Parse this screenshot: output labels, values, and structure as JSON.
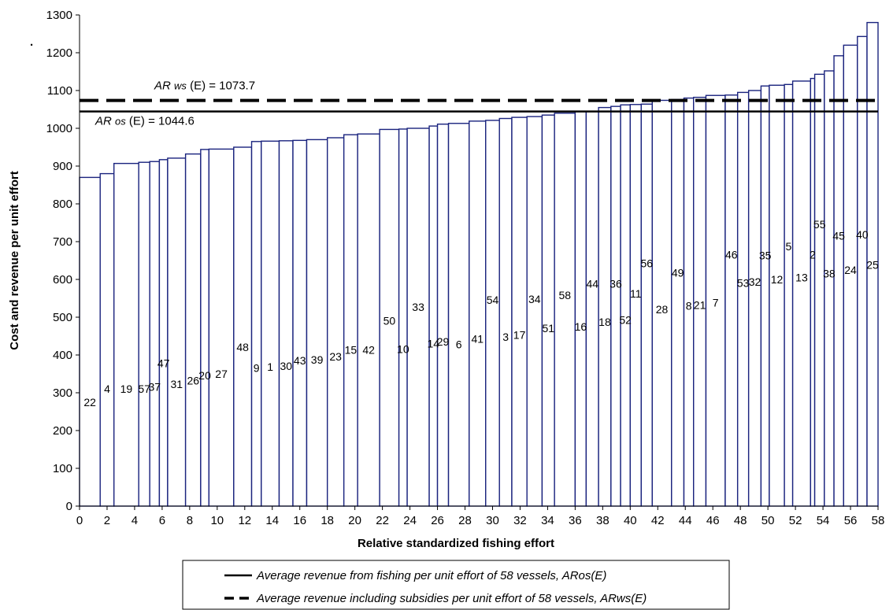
{
  "chart_data": {
    "type": "bar",
    "title": "",
    "xlabel": "Relative standardized fishing effort",
    "ylabel": "Cost and revenue per unit effort",
    "xlim": [
      0,
      58
    ],
    "ylim": [
      0,
      1300
    ],
    "x_ticks": [
      0,
      2,
      4,
      6,
      8,
      10,
      12,
      14,
      16,
      18,
      20,
      22,
      24,
      26,
      28,
      30,
      32,
      34,
      36,
      38,
      40,
      42,
      44,
      46,
      48,
      50,
      52,
      54,
      56,
      58
    ],
    "y_ticks": [
      0,
      100,
      200,
      300,
      400,
      500,
      600,
      700,
      800,
      900,
      1000,
      1100,
      1200,
      1300
    ],
    "bar_color": "#1a237e",
    "corner_mark": ".",
    "bars": [
      {
        "vessel": "22",
        "x0": 0,
        "x1": 1.5,
        "height": 870,
        "label_value": 265
      },
      {
        "vessel": "4",
        "x0": 1.5,
        "x1": 2.5,
        "height": 880,
        "label_value": 300
      },
      {
        "vessel": "19",
        "x0": 2.5,
        "x1": 4.3,
        "height": 907,
        "label_value": 300
      },
      {
        "vessel": "57",
        "x0": 4.3,
        "x1": 5.1,
        "height": 910,
        "label_value": 300
      },
      {
        "vessel": "37",
        "x0": 5.1,
        "x1": 5.8,
        "height": 912,
        "label_value": 305
      },
      {
        "vessel": "47",
        "x0": 5.8,
        "x1": 6.4,
        "height": 917,
        "label_value": 368
      },
      {
        "vessel": "31",
        "x0": 6.4,
        "x1": 7.7,
        "height": 921,
        "label_value": 312
      },
      {
        "vessel": "26",
        "x0": 7.7,
        "x1": 8.8,
        "height": 932,
        "label_value": 322
      },
      {
        "vessel": "20",
        "x0": 8.8,
        "x1": 9.4,
        "height": 944,
        "label_value": 335
      },
      {
        "vessel": "27",
        "x0": 9.4,
        "x1": 11.2,
        "height": 945,
        "label_value": 340
      },
      {
        "vessel": "48",
        "x0": 11.2,
        "x1": 12.5,
        "height": 950,
        "label_value": 410
      },
      {
        "vessel": "9",
        "x0": 12.5,
        "x1": 13.2,
        "height": 965,
        "label_value": 355
      },
      {
        "vessel": "1",
        "x0": 13.2,
        "x1": 14.5,
        "height": 966,
        "label_value": 358
      },
      {
        "vessel": "30",
        "x0": 14.5,
        "x1": 15.5,
        "height": 967,
        "label_value": 360
      },
      {
        "vessel": "43",
        "x0": 15.5,
        "x1": 16.5,
        "height": 968,
        "label_value": 375
      },
      {
        "vessel": "39",
        "x0": 16.5,
        "x1": 18,
        "height": 970,
        "label_value": 377
      },
      {
        "vessel": "23",
        "x0": 18,
        "x1": 19.2,
        "height": 975,
        "label_value": 385
      },
      {
        "vessel": "15",
        "x0": 19.2,
        "x1": 20.2,
        "height": 983,
        "label_value": 403
      },
      {
        "vessel": "42",
        "x0": 20.2,
        "x1": 21.8,
        "height": 985,
        "label_value": 403
      },
      {
        "vessel": "50",
        "x0": 21.8,
        "x1": 23.2,
        "height": 997,
        "label_value": 480
      },
      {
        "vessel": "10",
        "x0": 23.2,
        "x1": 23.8,
        "height": 998,
        "label_value": 405
      },
      {
        "vessel": "33",
        "x0": 23.8,
        "x1": 25.4,
        "height": 1000,
        "label_value": 517
      },
      {
        "vessel": "14",
        "x0": 25.4,
        "x1": 26,
        "height": 1006,
        "label_value": 420
      },
      {
        "vessel": "29",
        "x0": 26,
        "x1": 26.8,
        "height": 1011,
        "label_value": 425
      },
      {
        "vessel": "6",
        "x0": 26.8,
        "x1": 28.3,
        "height": 1013,
        "label_value": 418
      },
      {
        "vessel": "41",
        "x0": 28.3,
        "x1": 29.5,
        "height": 1019,
        "label_value": 432
      },
      {
        "vessel": "54",
        "x0": 29.5,
        "x1": 30.5,
        "height": 1021,
        "label_value": 535
      },
      {
        "vessel": "3",
        "x0": 30.5,
        "x1": 31.4,
        "height": 1026,
        "label_value": 437
      },
      {
        "vessel": "17",
        "x0": 31.4,
        "x1": 32.5,
        "height": 1029,
        "label_value": 443
      },
      {
        "vessel": "34",
        "x0": 32.5,
        "x1": 33.6,
        "height": 1031,
        "label_value": 537
      },
      {
        "vessel": "51",
        "x0": 33.6,
        "x1": 34.5,
        "height": 1035,
        "label_value": 460
      },
      {
        "vessel": "58",
        "x0": 34.5,
        "x1": 36,
        "height": 1040,
        "label_value": 548
      },
      {
        "vessel": "16",
        "x0": 36,
        "x1": 36.8,
        "height": 1045,
        "label_value": 465
      },
      {
        "vessel": "44",
        "x0": 36.8,
        "x1": 37.7,
        "height": 1045,
        "label_value": 578
      },
      {
        "vessel": "18",
        "x0": 37.7,
        "x1": 38.6,
        "height": 1055,
        "label_value": 477
      },
      {
        "vessel": "36",
        "x0": 38.6,
        "x1": 39.3,
        "height": 1058,
        "label_value": 578
      },
      {
        "vessel": "52",
        "x0": 39.3,
        "x1": 40,
        "height": 1062,
        "label_value": 482
      },
      {
        "vessel": "11",
        "x0": 40,
        "x1": 40.8,
        "height": 1063,
        "label_value": 552
      },
      {
        "vessel": "56",
        "x0": 40.8,
        "x1": 41.6,
        "height": 1064,
        "label_value": 632
      },
      {
        "vessel": "28",
        "x0": 41.6,
        "x1": 43,
        "height": 1074,
        "label_value": 510
      },
      {
        "vessel": "49",
        "x0": 43,
        "x1": 43.9,
        "height": 1076,
        "label_value": 607
      },
      {
        "vessel": "8",
        "x0": 43.9,
        "x1": 44.6,
        "height": 1080,
        "label_value": 520
      },
      {
        "vessel": "21",
        "x0": 44.6,
        "x1": 45.5,
        "height": 1082,
        "label_value": 522
      },
      {
        "vessel": "7",
        "x0": 45.5,
        "x1": 46.9,
        "height": 1087,
        "label_value": 528
      },
      {
        "vessel": "46",
        "x0": 46.9,
        "x1": 47.8,
        "height": 1088,
        "label_value": 655
      },
      {
        "vessel": "53",
        "x0": 47.8,
        "x1": 48.6,
        "height": 1095,
        "label_value": 580
      },
      {
        "vessel": "32",
        "x0": 48.6,
        "x1": 49.5,
        "height": 1100,
        "label_value": 583
      },
      {
        "vessel": "35",
        "x0": 49.5,
        "x1": 50.1,
        "height": 1112,
        "label_value": 653
      },
      {
        "vessel": "12",
        "x0": 50.1,
        "x1": 51.2,
        "height": 1114,
        "label_value": 590
      },
      {
        "vessel": "5",
        "x0": 51.2,
        "x1": 51.8,
        "height": 1116,
        "label_value": 677
      },
      {
        "vessel": "13",
        "x0": 51.8,
        "x1": 53.1,
        "height": 1125,
        "label_value": 595
      },
      {
        "vessel": "2",
        "x0": 53.1,
        "x1": 53.4,
        "height": 1132,
        "label_value": 655
      },
      {
        "vessel": "55",
        "x0": 53.4,
        "x1": 54.1,
        "height": 1143,
        "label_value": 735
      },
      {
        "vessel": "38",
        "x0": 54.1,
        "x1": 54.8,
        "height": 1152,
        "label_value": 605
      },
      {
        "vessel": "45",
        "x0": 54.8,
        "x1": 55.5,
        "height": 1192,
        "label_value": 705
      },
      {
        "vessel": "24",
        "x0": 55.5,
        "x1": 56.5,
        "height": 1220,
        "label_value": 615
      },
      {
        "vessel": "40",
        "x0": 56.5,
        "x1": 57.2,
        "height": 1243,
        "label_value": 708
      },
      {
        "vessel": "25",
        "x0": 57.2,
        "x1": 58,
        "height": 1280,
        "label_value": 628
      }
    ],
    "reference_lines": [
      {
        "name": "Average revenue from fishing per unit effort of 58 vessels, ARos(E)",
        "value": 1044.6,
        "style": "solid",
        "label_prefix": "AR",
        "label_sub": "os",
        "label_rest": " (E) = 1044.6"
      },
      {
        "name": "Average revenue including subsidies per unit effort of 58 vessels, ARws(E)",
        "value": 1073.7,
        "style": "dashed",
        "label_prefix": "AR",
        "label_sub": "ws",
        "label_rest": " (E) = 1073.7"
      }
    ],
    "grid": false,
    "legend_position": "bottom-center"
  }
}
